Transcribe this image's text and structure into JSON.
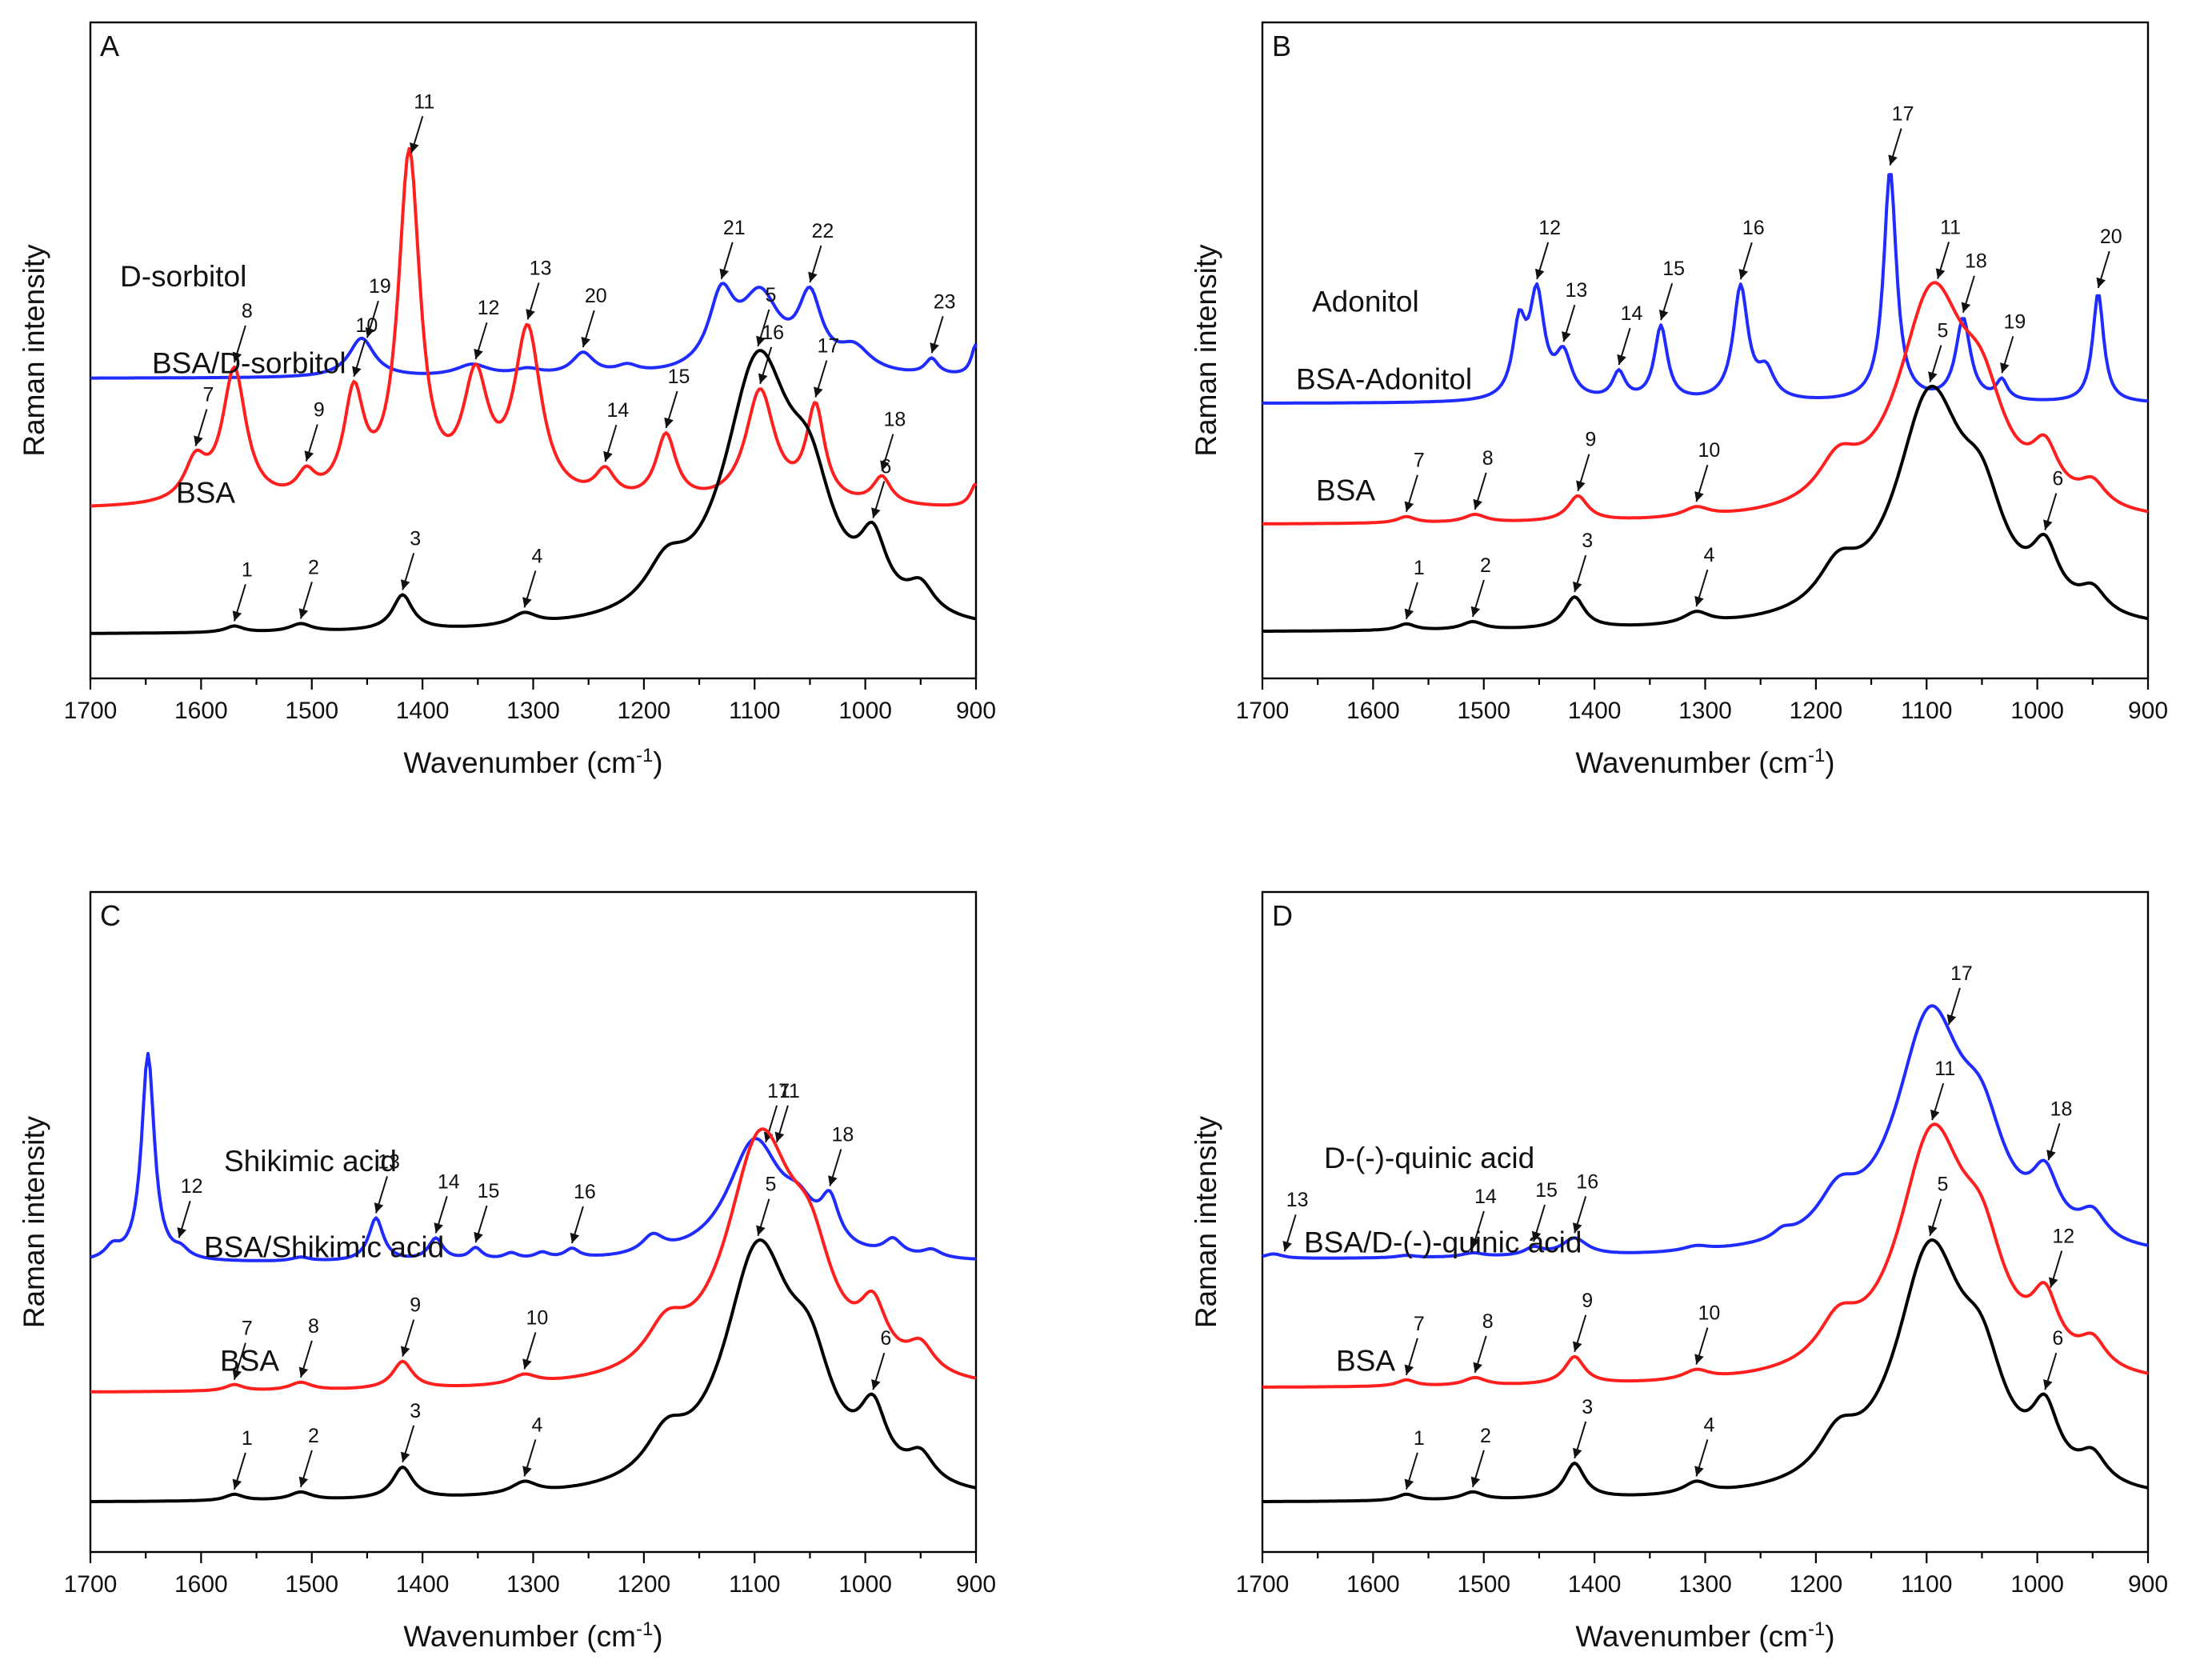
{
  "colors": {
    "blue": "#1f2bff",
    "red": "#ff1f1f",
    "black": "#000000"
  },
  "chart_data": [
    {
      "type": "line",
      "panel": "A",
      "xlabel": "Wavenumber (cm",
      "xlabel_sup": "-1",
      "xlabel_end": ")",
      "ylabel": "Raman intensity",
      "xlim": [
        1700,
        900
      ],
      "xticks": [
        1700,
        1600,
        1500,
        1400,
        1300,
        1200,
        1100,
        1000,
        900
      ],
      "series": [
        {
          "name": "D-sorbitol",
          "color": "blue",
          "baseline": 3.52,
          "peaks": [
            [
              1455,
              0.5,
              14
            ],
            [
              1355,
              0.15,
              18
            ],
            [
              1305,
              0.08,
              15
            ],
            [
              1255,
              0.28,
              12
            ],
            [
              1215,
              0.1,
              12
            ],
            [
              1130,
              0.9,
              14
            ],
            [
              1095,
              0.95,
              22
            ],
            [
              1050,
              0.9,
              13
            ],
            [
              1010,
              0.3,
              18
            ],
            [
              940,
              0.2,
              7
            ],
            [
              900,
              0.4,
              5
            ]
          ],
          "labels": [
            [
              "19",
              1450
            ],
            [
              "20",
              1255
            ],
            [
              "21",
              1130
            ],
            [
              "22",
              1050
            ],
            [
              "23",
              940
            ]
          ]
        },
        {
          "name": "BSA/D-sorbitol",
          "color": "red",
          "baseline": 1.85,
          "peaks": [
            [
              1605,
              0.5,
              12
            ],
            [
              1570,
              1.7,
              13
            ],
            [
              1505,
              0.3,
              10
            ],
            [
              1462,
              1.3,
              11
            ],
            [
              1412,
              4.4,
              12
            ],
            [
              1352,
              1.45,
              14
            ],
            [
              1305,
              2.15,
              15
            ],
            [
              1235,
              0.35,
              11
            ],
            [
              1180,
              0.85,
              11
            ],
            [
              1095,
              1.45,
              16
            ],
            [
              1045,
              1.2,
              10
            ],
            [
              985,
              0.35,
              10
            ],
            [
              900,
              0.3,
              6
            ]
          ],
          "labels": [
            [
              "7",
              1605
            ],
            [
              "8",
              1570
            ],
            [
              "9",
              1505
            ],
            [
              "10",
              1462
            ],
            [
              "11",
              1410
            ],
            [
              "12",
              1352
            ],
            [
              "13",
              1305
            ],
            [
              "14",
              1235
            ],
            [
              "15",
              1180
            ],
            [
              "16",
              1095
            ],
            [
              "17",
              1045
            ],
            [
              "18",
              985
            ]
          ]
        },
        {
          "name": "BSA",
          "color": "black",
          "baseline": 0.25,
          "peaks": [
            [
              1570,
              0.08,
              10
            ],
            [
              1510,
              0.1,
              12
            ],
            [
              1418,
              0.45,
              11
            ],
            [
              1308,
              0.15,
              14
            ],
            [
              1180,
              0.5,
              22
            ],
            [
              1097,
              3.3,
              38
            ],
            [
              1050,
              1.2,
              25
            ],
            [
              993,
              0.8,
              15
            ],
            [
              950,
              0.35,
              15
            ]
          ],
          "labels": [
            [
              "1",
              1570
            ],
            [
              "2",
              1510
            ],
            [
              "3",
              1418
            ],
            [
              "4",
              1308
            ],
            [
              "5",
              1097
            ],
            [
              "6",
              993
            ]
          ]
        }
      ]
    },
    {
      "type": "line",
      "panel": "B",
      "xlabel": "Wavenumber (cm",
      "xlabel_sup": "-1",
      "xlabel_end": ")",
      "ylabel": "Raman intensity",
      "xlim": [
        1700,
        900
      ],
      "xticks": [
        1700,
        1600,
        1500,
        1400,
        1300,
        1200,
        1100,
        1000,
        900
      ],
      "series": [
        {
          "name": "Adonitol",
          "color": "blue",
          "baseline": 3.2,
          "peaks": [
            [
              1468,
              0.9,
              7
            ],
            [
              1452,
              1.3,
              8
            ],
            [
              1428,
              0.55,
              9
            ],
            [
              1378,
              0.35,
              7
            ],
            [
              1340,
              0.95,
              7
            ],
            [
              1268,
              1.45,
              8
            ],
            [
              1245,
              0.35,
              9
            ],
            [
              1133,
              2.95,
              7
            ],
            [
              1067,
              1.05,
              8
            ],
            [
              1032,
              0.25,
              6
            ],
            [
              945,
              1.4,
              6
            ]
          ],
          "labels": [
            [
              "12",
              1452
            ],
            [
              "13",
              1428
            ],
            [
              "14",
              1378
            ],
            [
              "15",
              1340
            ],
            [
              "16",
              1268
            ],
            [
              "17",
              1133
            ],
            [
              "18",
              1067
            ],
            [
              "19",
              1032
            ],
            [
              "20",
              945
            ]
          ]
        },
        {
          "name": "BSA-Adonitol",
          "color": "red",
          "baseline": 1.65,
          "peaks": [
            [
              1570,
              0.08,
              10
            ],
            [
              1508,
              0.1,
              12
            ],
            [
              1415,
              0.32,
              11
            ],
            [
              1308,
              0.12,
              14
            ],
            [
              1180,
              0.5,
              22
            ],
            [
              1095,
              2.8,
              38
            ],
            [
              1050,
              1.0,
              25
            ],
            [
              993,
              0.6,
              15
            ],
            [
              950,
              0.3,
              15
            ]
          ],
          "labels": [
            [
              "7",
              1570
            ],
            [
              "8",
              1508
            ],
            [
              "9",
              1415
            ],
            [
              "10",
              1308
            ],
            [
              "11",
              1090
            ]
          ]
        },
        {
          "name": "BSA",
          "color": "black",
          "baseline": 0.28,
          "peaks": [
            [
              1570,
              0.08,
              10
            ],
            [
              1510,
              0.1,
              12
            ],
            [
              1418,
              0.4,
              11
            ],
            [
              1308,
              0.15,
              14
            ],
            [
              1180,
              0.5,
              22
            ],
            [
              1097,
              2.85,
              38
            ],
            [
              1050,
              1.05,
              25
            ],
            [
              993,
              0.7,
              15
            ],
            [
              950,
              0.3,
              15
            ]
          ],
          "labels": [
            [
              "1",
              1570
            ],
            [
              "2",
              1510
            ],
            [
              "3",
              1418
            ],
            [
              "4",
              1308
            ],
            [
              "5",
              1097
            ],
            [
              "6",
              993
            ]
          ]
        }
      ]
    },
    {
      "type": "line",
      "panel": "C",
      "xlabel": "Wavenumber (cm",
      "xlabel_sup": "-1",
      "xlabel_end": ")",
      "ylabel": "Raman intensity",
      "xlim": [
        1700,
        900
      ],
      "xticks": [
        1700,
        1600,
        1500,
        1400,
        1300,
        1200,
        1100,
        1000,
        900
      ],
      "series": [
        {
          "name": "Shikimic acid",
          "color": "blue",
          "baseline": 3.38,
          "peaks": [
            [
              1680,
              0.15,
              8
            ],
            [
              1648,
              2.65,
              7
            ],
            [
              1618,
              0.1,
              8
            ],
            [
              1510,
              0.05,
              10
            ],
            [
              1442,
              0.55,
              8
            ],
            [
              1388,
              0.28,
              8
            ],
            [
              1352,
              0.15,
              7
            ],
            [
              1320,
              0.08,
              8
            ],
            [
              1292,
              0.08,
              8
            ],
            [
              1265,
              0.12,
              8
            ],
            [
              1192,
              0.22,
              12
            ],
            [
              1100,
              1.5,
              30
            ],
            [
              1060,
              0.4,
              18
            ],
            [
              1032,
              0.55,
              10
            ],
            [
              975,
              0.2,
              10
            ],
            [
              940,
              0.1,
              10
            ]
          ],
          "labels": [
            [
              "12",
              1620
            ],
            [
              "13",
              1442
            ],
            [
              "14",
              1388
            ],
            [
              "15",
              1352
            ],
            [
              "16",
              1265
            ],
            [
              "17",
              1090
            ],
            [
              "18",
              1032
            ]
          ]
        },
        {
          "name": "BSA/Shikimic acid",
          "color": "red",
          "baseline": 1.72,
          "peaks": [
            [
              1570,
              0.08,
              10
            ],
            [
              1510,
              0.1,
              12
            ],
            [
              1418,
              0.35,
              11
            ],
            [
              1308,
              0.12,
              14
            ],
            [
              1180,
              0.5,
              22
            ],
            [
              1095,
              3.05,
              38
            ],
            [
              1050,
              1.1,
              25
            ],
            [
              993,
              0.7,
              15
            ],
            [
              950,
              0.35,
              15
            ]
          ],
          "labels": [
            [
              "7",
              1570
            ],
            [
              "8",
              1510
            ],
            [
              "9",
              1418
            ],
            [
              "10",
              1308
            ],
            [
              "11",
              1080
            ]
          ]
        },
        {
          "name": "BSA",
          "color": "black",
          "baseline": 0.32,
          "peaks": [
            [
              1570,
              0.08,
              10
            ],
            [
              1510,
              0.1,
              12
            ],
            [
              1418,
              0.4,
              11
            ],
            [
              1308,
              0.15,
              14
            ],
            [
              1180,
              0.5,
              22
            ],
            [
              1097,
              3.05,
              38
            ],
            [
              1050,
              1.1,
              25
            ],
            [
              993,
              0.8,
              15
            ],
            [
              950,
              0.35,
              15
            ]
          ],
          "labels": [
            [
              "1",
              1570
            ],
            [
              "2",
              1510
            ],
            [
              "3",
              1418
            ],
            [
              "4",
              1308
            ],
            [
              "5",
              1097
            ],
            [
              "6",
              993
            ]
          ]
        }
      ]
    },
    {
      "type": "line",
      "panel": "D",
      "xlabel": "Wavenumber (cm",
      "xlabel_sup": "-1",
      "xlabel_end": ")",
      "ylabel": "Raman intensity",
      "xlim": [
        1700,
        900
      ],
      "xticks": [
        1700,
        1600,
        1500,
        1400,
        1300,
        1200,
        1100,
        1000,
        900
      ],
      "series": [
        {
          "name": "D-(-)-quinic acid",
          "color": "blue",
          "baseline": 3.42,
          "peaks": [
            [
              1690,
              0.06,
              10
            ],
            [
              1570,
              0.03,
              10
            ],
            [
              1510,
              0.05,
              12
            ],
            [
              1455,
              0.1,
              10
            ],
            [
              1418,
              0.22,
              14
            ],
            [
              1308,
              0.06,
              14
            ],
            [
              1230,
              0.1,
              10
            ],
            [
              1180,
              0.5,
              22
            ],
            [
              1097,
              2.95,
              38
            ],
            [
              1050,
              1.05,
              25
            ],
            [
              993,
              0.7,
              15
            ],
            [
              950,
              0.35,
              15
            ]
          ],
          "labels": [
            [
              "13",
              1680
            ],
            [
              "14",
              1510
            ],
            [
              "15",
              1455
            ],
            [
              "16",
              1418
            ],
            [
              "17",
              1080
            ],
            [
              "18",
              990
            ]
          ]
        },
        {
          "name": "BSA/D-(-)-quinic acid",
          "color": "red",
          "baseline": 1.78,
          "peaks": [
            [
              1570,
              0.08,
              10
            ],
            [
              1508,
              0.1,
              12
            ],
            [
              1418,
              0.35,
              11
            ],
            [
              1308,
              0.12,
              14
            ],
            [
              1180,
              0.5,
              22
            ],
            [
              1095,
              3.05,
              38
            ],
            [
              1050,
              1.1,
              25
            ],
            [
              993,
              0.75,
              15
            ],
            [
              950,
              0.35,
              15
            ]
          ],
          "labels": [
            [
              "7",
              1570
            ],
            [
              "8",
              1508
            ],
            [
              "9",
              1418
            ],
            [
              "10",
              1308
            ],
            [
              "11",
              1095
            ],
            [
              "12",
              988
            ]
          ]
        },
        {
          "name": "BSA",
          "color": "black",
          "baseline": 0.32,
          "peaks": [
            [
              1570,
              0.08,
              10
            ],
            [
              1510,
              0.1,
              12
            ],
            [
              1418,
              0.45,
              11
            ],
            [
              1308,
              0.15,
              14
            ],
            [
              1180,
              0.5,
              22
            ],
            [
              1097,
              3.05,
              38
            ],
            [
              1050,
              1.1,
              25
            ],
            [
              993,
              0.8,
              15
            ],
            [
              950,
              0.35,
              15
            ]
          ],
          "labels": [
            [
              "1",
              1570
            ],
            [
              "2",
              1510
            ],
            [
              "3",
              1418
            ],
            [
              "4",
              1308
            ],
            [
              "5",
              1097
            ],
            [
              "6",
              993
            ]
          ]
        }
      ]
    }
  ]
}
